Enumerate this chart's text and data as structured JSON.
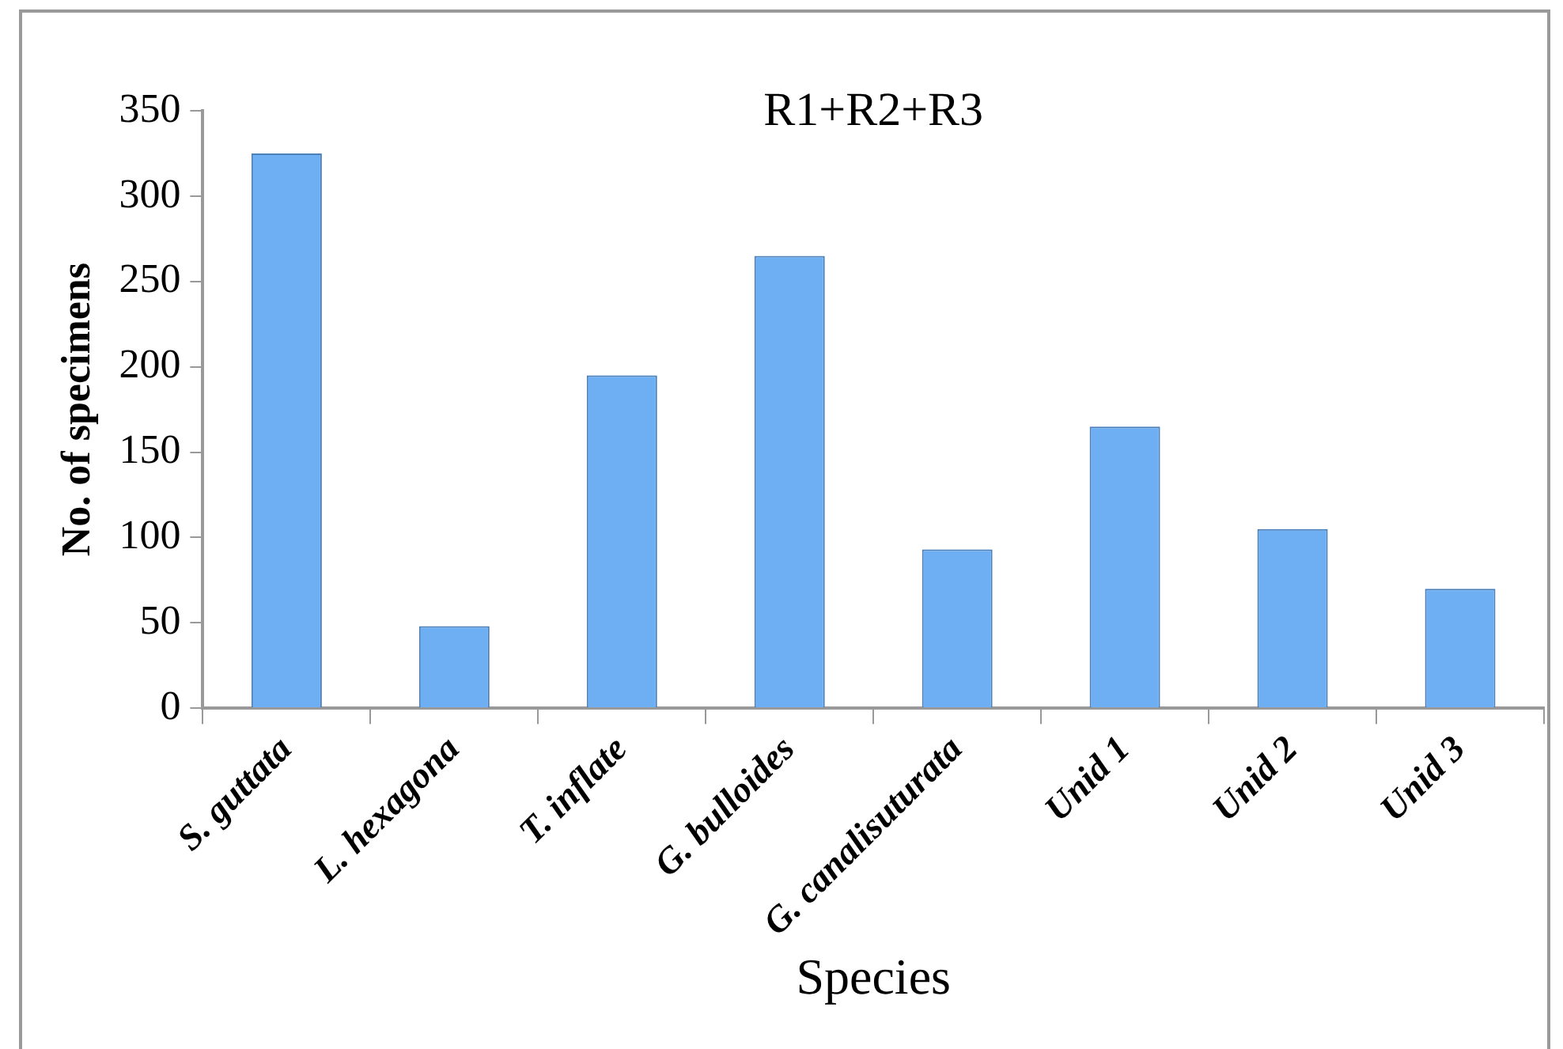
{
  "chart_data": {
    "type": "bar",
    "title": "R1+R2+R3",
    "xlabel": "Species",
    "ylabel": "No. of specimens",
    "categories": [
      "S. guttata",
      "L. hexagona",
      "T. inflate",
      "G. bulloides",
      "G. canalisuturata",
      "Unid 1",
      "Unid 2",
      "Unid 3"
    ],
    "values": [
      325,
      48,
      195,
      265,
      93,
      165,
      105,
      70
    ],
    "color": "#6eaef2",
    "ylim": [
      0,
      350
    ],
    "yticks": [
      0,
      50,
      100,
      150,
      200,
      250,
      300,
      350
    ],
    "grid": false,
    "legend": false
  }
}
